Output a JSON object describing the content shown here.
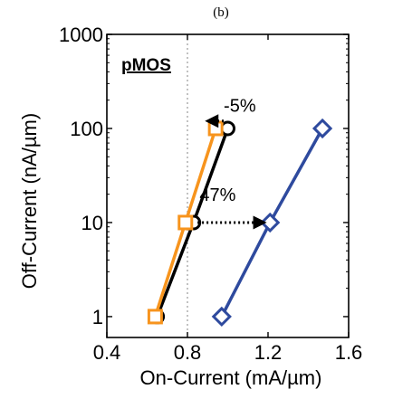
{
  "chart_data": {
    "type": "line",
    "panel_label": "(b)",
    "inset_title": "pMOS",
    "xlabel": "On-Current (mA/µm)",
    "ylabel": "Off-Current (nA/µm)",
    "xlim": [
      0.4,
      1.6
    ],
    "ylim": [
      0.6,
      1000
    ],
    "yscale": "log",
    "grid": "dotted vertical at 0.8",
    "x_ticks": [
      {
        "value": 0.4,
        "label": "0.4"
      },
      {
        "value": 0.8,
        "label": "0.8"
      },
      {
        "value": 1.2,
        "label": "1.2"
      },
      {
        "value": 1.6,
        "label": "1.6"
      }
    ],
    "y_ticks": [
      {
        "value": 1,
        "label": "1"
      },
      {
        "value": 10,
        "label": "10"
      },
      {
        "value": 100,
        "label": "100"
      },
      {
        "value": 1000,
        "label": "1000"
      }
    ],
    "series": [
      {
        "marker": "circle",
        "color": "#000000",
        "x": [
          0.65,
          0.83,
          1.0
        ],
        "y": [
          1,
          10,
          100
        ]
      },
      {
        "marker": "square",
        "color": "#f7941d",
        "x": [
          0.64,
          0.79,
          0.94
        ],
        "y": [
          1,
          10,
          100
        ]
      },
      {
        "marker": "diamond",
        "color": "#2e4a9e",
        "x": [
          0.97,
          1.21,
          1.47
        ],
        "y": [
          1,
          10,
          100
        ]
      }
    ],
    "annotations": [
      {
        "text": "-5%",
        "arrow_from": [
          0.98,
          120
        ],
        "arrow_to": [
          0.9,
          120
        ],
        "text_at": [
          0.98,
          150
        ]
      },
      {
        "text": "47%",
        "arrow_from": [
          0.85,
          10
        ],
        "arrow_to": [
          1.18,
          10
        ],
        "text_at": [
          0.86,
          17
        ]
      }
    ]
  }
}
